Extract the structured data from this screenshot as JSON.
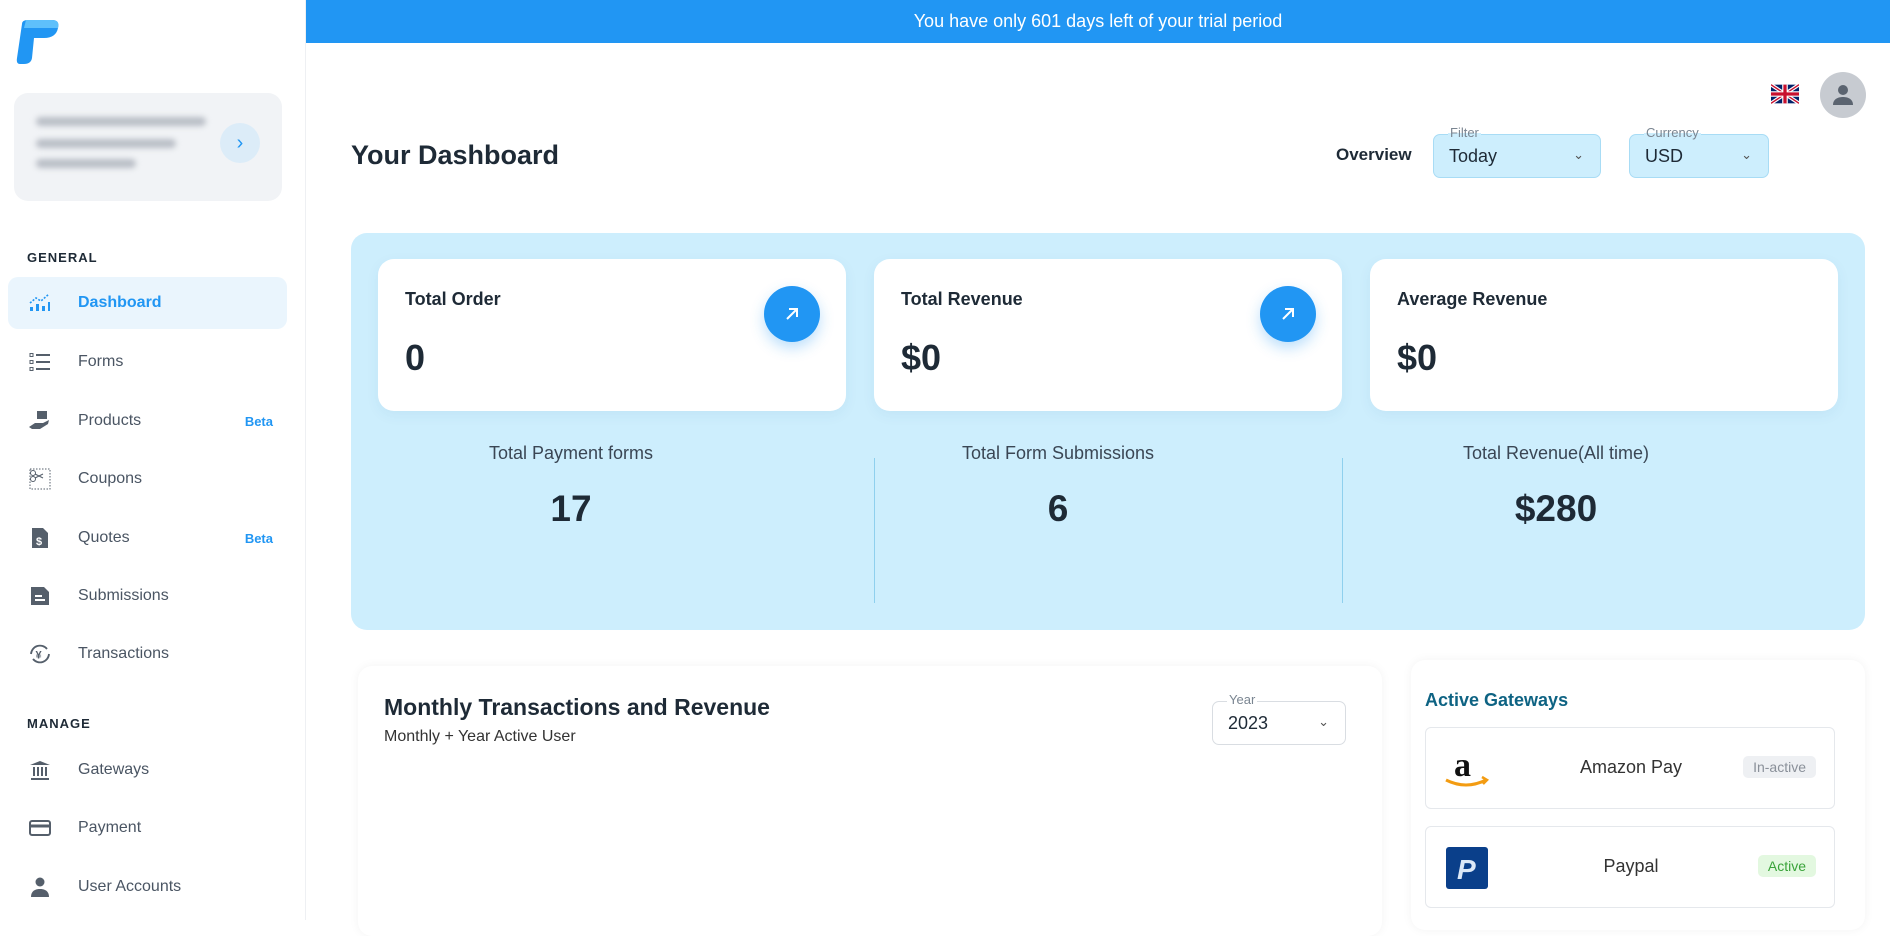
{
  "banner": {
    "text": "You have only 601 days left of your trial period"
  },
  "sidebar": {
    "sections": [
      {
        "label": "GENERAL"
      },
      {
        "label": "MANAGE"
      }
    ],
    "items": [
      {
        "label": "Dashboard",
        "icon": "chart-icon",
        "active": true
      },
      {
        "label": "Forms",
        "icon": "list-icon"
      },
      {
        "label": "Products",
        "icon": "product-hand-icon",
        "badge": "Beta"
      },
      {
        "label": "Coupons",
        "icon": "scissors-icon"
      },
      {
        "label": "Quotes",
        "icon": "dollar-document-icon",
        "badge": "Beta"
      },
      {
        "label": "Submissions",
        "icon": "document-icon"
      },
      {
        "label": "Transactions",
        "icon": "yen-exchange-icon"
      },
      {
        "label": "Gateways",
        "icon": "bank-icon"
      },
      {
        "label": "Payment",
        "icon": "credit-card-icon"
      },
      {
        "label": "User Accounts",
        "icon": "user-icon"
      }
    ]
  },
  "header": {
    "title": "Your Dashboard",
    "overview_label": "Overview",
    "filter": {
      "label": "Filter",
      "value": "Today"
    },
    "currency": {
      "label": "Currency",
      "value": "USD"
    }
  },
  "cards": [
    {
      "title": "Total Order",
      "value": "0"
    },
    {
      "title": "Total Revenue",
      "value": "$0"
    },
    {
      "title": "Average Revenue",
      "value": "$0"
    }
  ],
  "stats": [
    {
      "label": "Total Payment forms",
      "value": "17"
    },
    {
      "label": "Total Form Submissions",
      "value": "6"
    },
    {
      "label": "Total Revenue(All time)",
      "value": "$280"
    }
  ],
  "chart": {
    "title": "Monthly Transactions and Revenue",
    "subtitle": "Monthly + Year Active User",
    "year": {
      "label": "Year",
      "value": "2023"
    }
  },
  "gateways": {
    "title": "Active Gateways",
    "items": [
      {
        "name": "Amazon Pay",
        "status": "In-active"
      },
      {
        "name": "Paypal",
        "status": "Active"
      }
    ]
  },
  "colors": {
    "accent": "#2196f3",
    "panel": "#cdeefd",
    "active_badge": "#e3f8e0",
    "inactive_badge": "#eef0f3"
  }
}
